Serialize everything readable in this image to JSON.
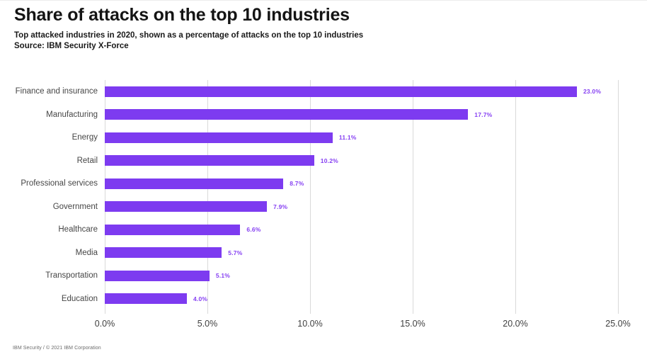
{
  "header": {
    "title": "Share of attacks on the top 10 industries",
    "subtitle": "Top attacked industries in 2020, shown as a percentage of attacks on the top 10 industries",
    "source": "Source: IBM Security X-Force"
  },
  "chart_data": {
    "type": "bar",
    "orientation": "horizontal",
    "title": "Share of attacks on the top 10 industries",
    "categories": [
      "Finance and insurance",
      "Manufacturing",
      "Energy",
      "Retail",
      "Professional services",
      "Government",
      "Healthcare",
      "Media",
      "Transportation",
      "Education"
    ],
    "values": [
      23.0,
      17.7,
      11.1,
      10.2,
      8.7,
      7.9,
      6.6,
      5.7,
      5.1,
      4.0
    ],
    "value_labels": [
      "23.0%",
      "17.7%",
      "11.1%",
      "10.2%",
      "8.7%",
      "7.9%",
      "6.6%",
      "5.7%",
      "5.1%",
      "4.0%"
    ],
    "xlabel": "",
    "ylabel": "",
    "xlim": [
      0,
      25
    ],
    "x_ticks": [
      0,
      5,
      10,
      15,
      20,
      25
    ],
    "x_tick_labels": [
      "0.0%",
      "5.0%",
      "10.0%",
      "15.0%",
      "20.0%",
      "25.0%"
    ],
    "grid": "vertical-only",
    "legend": "none",
    "bar_color": "#7d3bf0",
    "value_label_color": "#8640f2",
    "gridline_color": "#d9d9d9"
  },
  "footer": {
    "text": "IBM Security / © 2021 IBM Corporation"
  }
}
